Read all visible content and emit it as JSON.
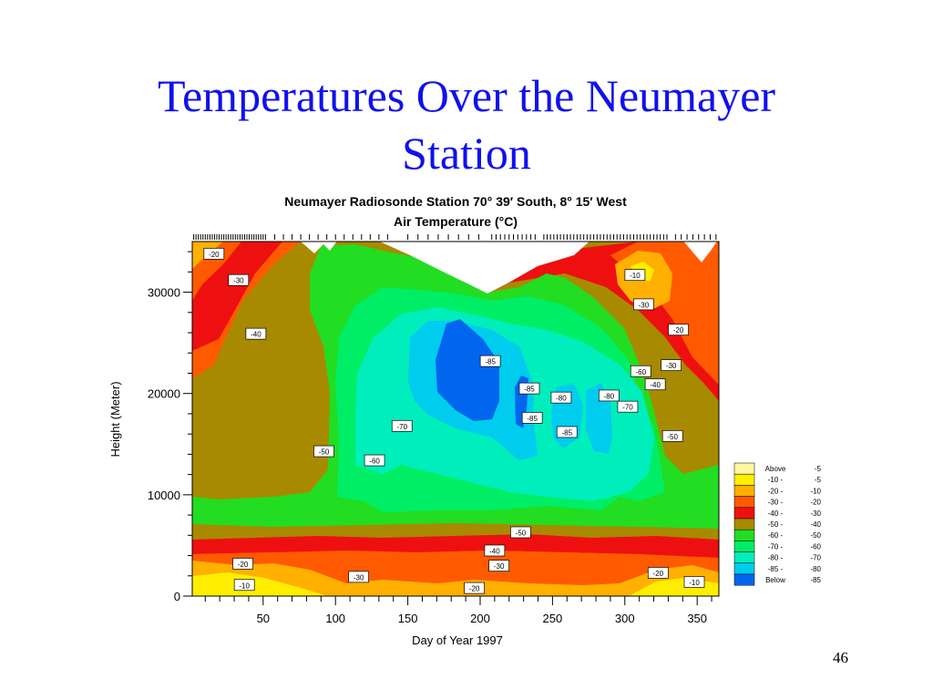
{
  "slide": {
    "title_line1": "Temperatures Over the Neumayer",
    "title_line2": "Station",
    "page_number": "46"
  },
  "chart_data": {
    "type": "heatmap",
    "title": "Neumayer Radiosonde Station  70° 39′ South, 8° 15′ West",
    "subtitle": "Air Temperature (°C)",
    "xlabel": "Day of Year 1997",
    "ylabel": "Height (Meter)",
    "xlim": [
      1,
      365
    ],
    "ylim": [
      0,
      35000
    ],
    "xticks": [
      50,
      100,
      150,
      200,
      250,
      300,
      350
    ],
    "yticks": [
      0,
      10000,
      20000,
      30000
    ],
    "ytick_labels": [
      "0",
      "10000",
      "20000",
      "30000"
    ],
    "legend_position": "right",
    "legend": [
      {
        "label": "Above",
        "range": "-5",
        "color": "#fff6a0"
      },
      {
        "label": "-10 -",
        "range": "-5",
        "color": "#ffee00"
      },
      {
        "label": "-20 -",
        "range": "-10",
        "color": "#ffb000"
      },
      {
        "label": "-30 -",
        "range": "-20",
        "color": "#ff5a00"
      },
      {
        "label": "-40 -",
        "range": "-30",
        "color": "#ee1010"
      },
      {
        "label": "-50 -",
        "range": "-40",
        "color": "#a88a00"
      },
      {
        "label": "-60 -",
        "range": "-50",
        "color": "#22dd22"
      },
      {
        "label": "-70 -",
        "range": "-60",
        "color": "#00ee66"
      },
      {
        "label": "-80 -",
        "range": "-70",
        "color": "#00eebb"
      },
      {
        "label": "-85 -",
        "range": "-80",
        "color": "#00ccee"
      },
      {
        "label": "Below",
        "range": "-85",
        "color": "#0066ee"
      }
    ],
    "contour_labels": [
      {
        "text": "-20",
        "day": 16,
        "height": 33800
      },
      {
        "text": "-30",
        "day": 33,
        "height": 31200
      },
      {
        "text": "-40",
        "day": 45,
        "height": 25900
      },
      {
        "text": "-50",
        "day": 92,
        "height": 14300
      },
      {
        "text": "-60",
        "day": 127,
        "height": 13400
      },
      {
        "text": "-70",
        "day": 146,
        "height": 16800
      },
      {
        "text": "-85",
        "day": 207,
        "height": 23200
      },
      {
        "text": "-85",
        "day": 234,
        "height": 20500
      },
      {
        "text": "-85",
        "day": 236,
        "height": 17600
      },
      {
        "text": "-80",
        "day": 256,
        "height": 19600
      },
      {
        "text": "-85",
        "day": 260,
        "height": 16200
      },
      {
        "text": "-80",
        "day": 289,
        "height": 19800
      },
      {
        "text": "-70",
        "day": 302,
        "height": 18700
      },
      {
        "text": "-60",
        "day": 311,
        "height": 22200
      },
      {
        "text": "-50",
        "day": 333,
        "height": 15800
      },
      {
        "text": "-40",
        "day": 321,
        "height": 20900
      },
      {
        "text": "-30",
        "day": 332,
        "height": 22800
      },
      {
        "text": "-30",
        "day": 313,
        "height": 28800
      },
      {
        "text": "-20",
        "day": 337,
        "height": 26300
      },
      {
        "text": "-10",
        "day": 307,
        "height": 31700
      },
      {
        "text": "-50",
        "day": 228,
        "height": 6300
      },
      {
        "text": "-40",
        "day": 210,
        "height": 4500
      },
      {
        "text": "-30",
        "day": 213,
        "height": 3000
      },
      {
        "text": "-20",
        "day": 36,
        "height": 3200
      },
      {
        "text": "-30",
        "day": 116,
        "height": 1900
      },
      {
        "text": "-10",
        "day": 37,
        "height": 1100
      },
      {
        "text": "-20",
        "day": 196,
        "height": 800
      },
      {
        "text": "-20",
        "day": 323,
        "height": 2300
      },
      {
        "text": "-10",
        "day": 348,
        "height": 1400
      }
    ]
  }
}
